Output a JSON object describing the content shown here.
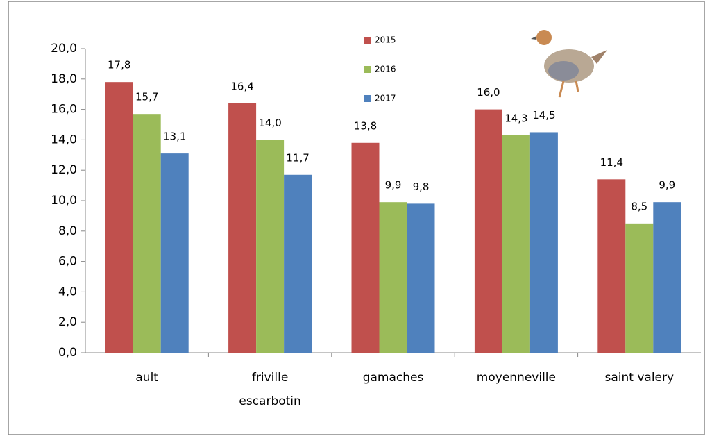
{
  "chart_data": {
    "type": "bar",
    "categories": [
      "ault",
      "friville escarbotin",
      "gamaches",
      "moyenneville",
      "saint valery"
    ],
    "series": [
      {
        "name": "2015",
        "color": "#c0504d",
        "values": [
          17.8,
          16.4,
          13.8,
          16.0,
          11.4
        ],
        "value_labels": [
          "17,8",
          "16,4",
          "13,8",
          "16,0",
          "11,4"
        ]
      },
      {
        "name": "2016",
        "color": "#9bbb59",
        "values": [
          15.7,
          14.0,
          9.9,
          14.3,
          8.5
        ],
        "value_labels": [
          "15,7",
          "14,0",
          "9,9",
          "14,3",
          "8,5"
        ]
      },
      {
        "name": "2017",
        "color": "#4f81bd",
        "values": [
          13.1,
          11.7,
          9.8,
          14.5,
          9.9
        ],
        "value_labels": [
          "13,1",
          "11,7",
          "9,8",
          "14,5",
          "9,9"
        ]
      }
    ],
    "ylim": [
      0,
      20
    ],
    "yticks": [
      {
        "value": 0,
        "label": "0,0"
      },
      {
        "value": 2,
        "label": "2,0"
      },
      {
        "value": 4,
        "label": "4,0"
      },
      {
        "value": 6,
        "label": "6,0"
      },
      {
        "value": 8,
        "label": "8,0"
      },
      {
        "value": 10,
        "label": "10,0"
      },
      {
        "value": 12,
        "label": "12,0"
      },
      {
        "value": 14,
        "label": "14,0"
      },
      {
        "value": 16,
        "label": "16,0"
      },
      {
        "value": 18,
        "label": "18,0"
      },
      {
        "value": 20,
        "label": "20,0"
      }
    ],
    "grid": false
  }
}
